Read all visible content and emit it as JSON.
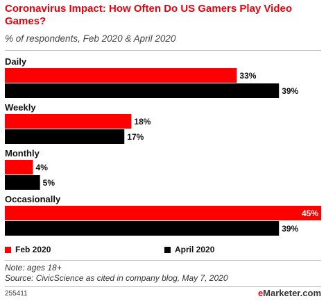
{
  "colors": {
    "feb": "#ff0000",
    "apr": "#000000",
    "title": "#e8000d"
  },
  "legend": {
    "feb": "Feb 2020",
    "apr": "April 2020"
  },
  "footer": {
    "note": "Note: ages 18+",
    "source": "Source: CivicScience as cited in company blog, May 7, 2020",
    "chart_id": "255411",
    "brand_prefix": "e",
    "brand_name": "Marketer",
    "brand_suffix": ".com"
  },
  "chart_data": {
    "type": "bar",
    "orientation": "horizontal",
    "title": "Coronavirus Impact: How Often Do US Gamers Play Video Games?",
    "subtitle": "% of respondents, Feb 2020 & April 2020",
    "categories": [
      "Daily",
      "Weekly",
      "Monthly",
      "Occasionally"
    ],
    "series": [
      {
        "name": "Feb 2020",
        "values": [
          33,
          18,
          4,
          45
        ]
      },
      {
        "name": "April 2020",
        "values": [
          39,
          17,
          5,
          39
        ]
      }
    ],
    "value_suffix": "%",
    "xlim": [
      0,
      45
    ],
    "grid": false,
    "legend_position": "bottom"
  }
}
